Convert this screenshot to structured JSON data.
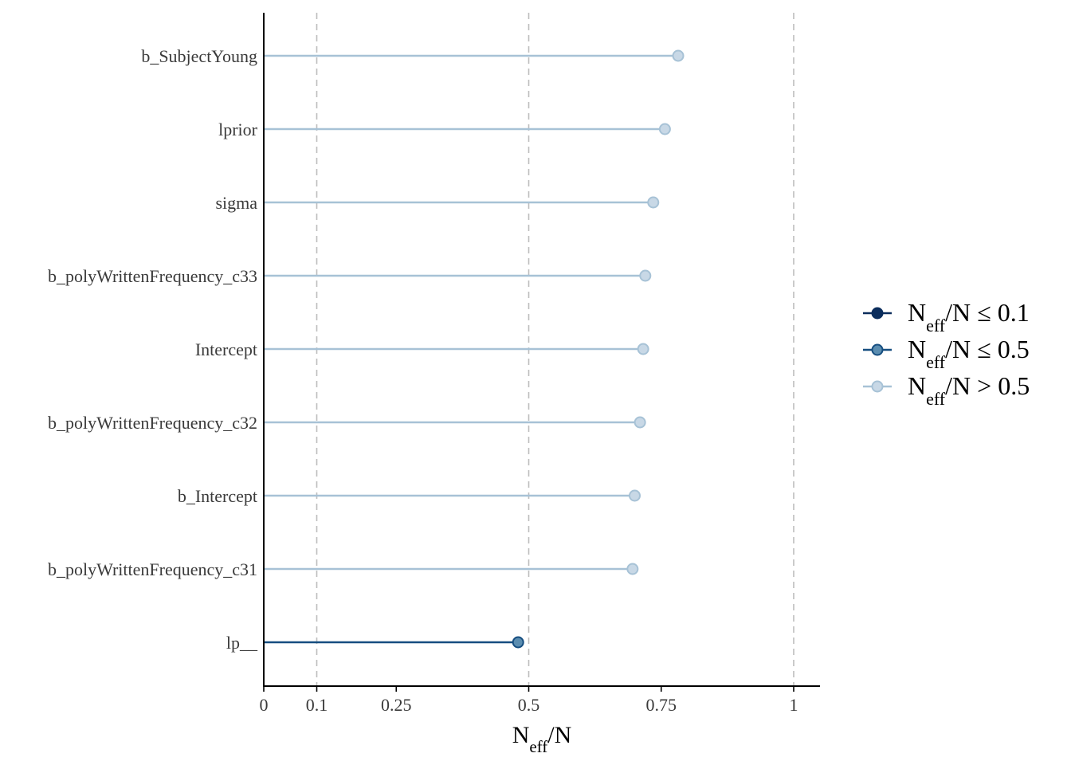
{
  "chart_data": {
    "type": "lollipop",
    "title": "",
    "xlabel": {
      "main": "N",
      "sub": "eff",
      "rest": "/N"
    },
    "xlim": [
      0,
      1.05
    ],
    "xticks": [
      {
        "value": 0,
        "label": "0"
      },
      {
        "value": 0.1,
        "label": "0.1"
      },
      {
        "value": 0.25,
        "label": "0.25"
      },
      {
        "value": 0.5,
        "label": "0.5"
      },
      {
        "value": 0.75,
        "label": "0.75"
      },
      {
        "value": 1,
        "label": "1"
      }
    ],
    "reference_lines": [
      0.1,
      0.5,
      1
    ],
    "categories": [
      "b_SubjectYoung",
      "lprior",
      "sigma",
      "b_polyWrittenFrequency_c33",
      "Intercept",
      "b_polyWrittenFrequency_c32",
      "b_Intercept",
      "b_polyWrittenFrequency_c31",
      "lp__"
    ],
    "values": [
      0.782,
      0.757,
      0.735,
      0.72,
      0.716,
      0.71,
      0.7,
      0.696,
      0.48
    ],
    "groups": [
      ">0.5",
      ">0.5",
      ">0.5",
      ">0.5",
      ">0.5",
      ">0.5",
      ">0.5",
      ">0.5",
      "<=0.5"
    ],
    "legend": {
      "position": "right",
      "entries": [
        {
          "key": "<=0.1",
          "main": "N",
          "sub": "eff",
          "rest": "/N ≤ 0.1",
          "line": "#0b2d5c",
          "fill": "#0b2d5c"
        },
        {
          "key": "<=0.5",
          "main": "N",
          "sub": "eff",
          "rest": "/N ≤ 0.5",
          "line": "#164e80",
          "fill": "#5b8db0"
        },
        {
          "key": ">0.5",
          "main": "N",
          "sub": "eff",
          "rest": "/N > 0.5",
          "line": "#a7c2d6",
          "fill": "#c8d8e6"
        }
      ]
    },
    "grid": false
  }
}
